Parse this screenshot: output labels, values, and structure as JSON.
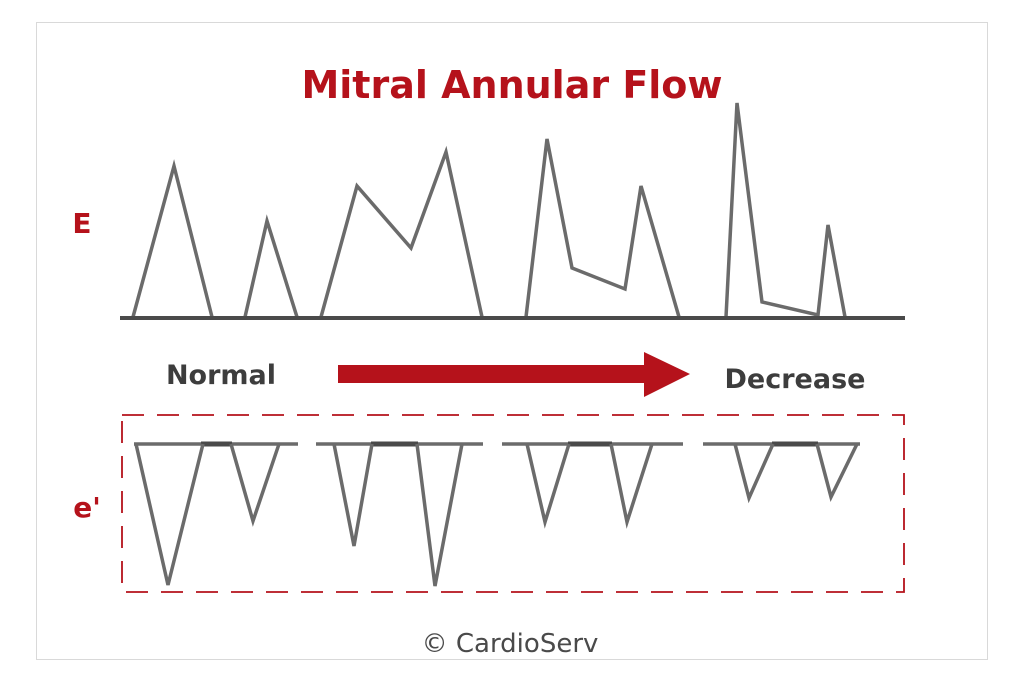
{
  "title": "Mitral Annular Flow",
  "labels": {
    "E": "E",
    "e_prime": "e'",
    "normal": "Normal",
    "decrease": "Decrease"
  },
  "credit": "© CardioServ",
  "colors": {
    "accent": "#b5121b",
    "waveform": "#6b6b6b",
    "baseline": "#4a4a4a",
    "text": "#3d3d3d",
    "frame": "#d9d9d9"
  }
}
